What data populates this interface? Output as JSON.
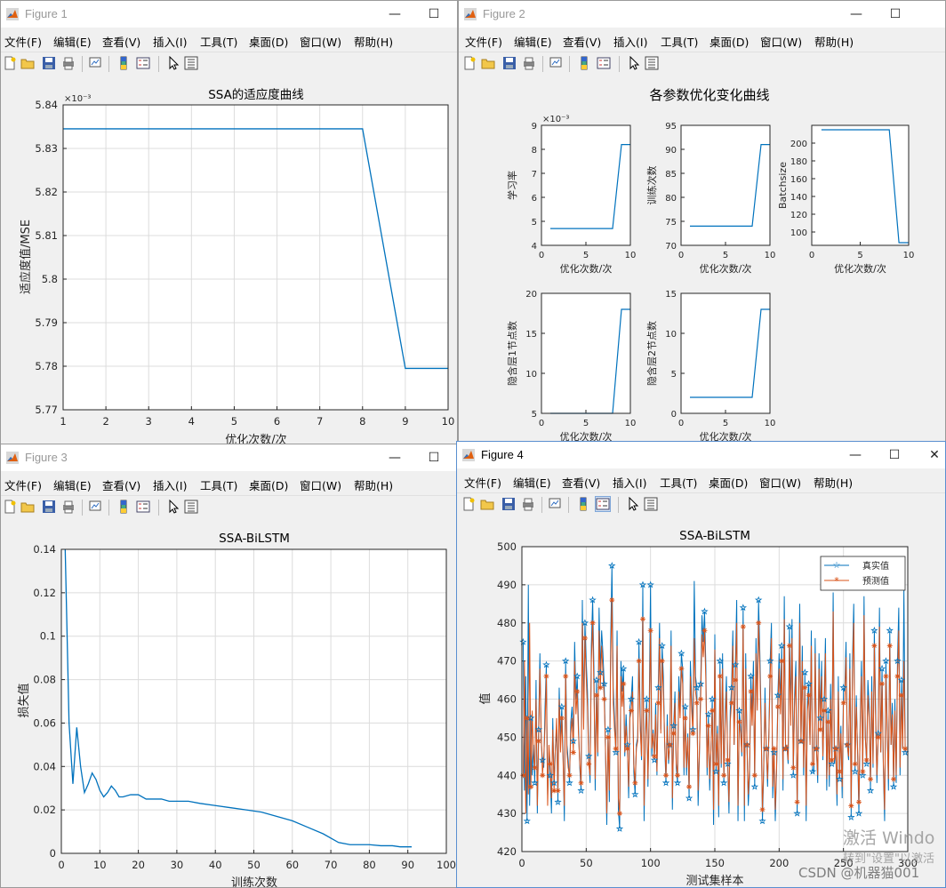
{
  "menu_items": [
    "文件(F)",
    "编辑(E)",
    "查看(V)",
    "插入(I)",
    "工具(T)",
    "桌面(D)",
    "窗口(W)",
    "帮助(H)"
  ],
  "window_controls": {
    "minimize": "—",
    "maximize": "☐",
    "close": "✕"
  },
  "toolbar_icons": [
    "new-figure-icon",
    "open-icon",
    "save-icon",
    "print-icon",
    "link-plot-icon",
    "insert-colorbar-icon",
    "insert-legend-icon",
    "edit-plot-icon",
    "property-inspector-icon"
  ],
  "colors": {
    "series_blue": "#0072BD",
    "series_orange": "#D95319",
    "grid": "#dcdcdc",
    "window_bg": "#f0f0f0"
  },
  "figures": [
    {
      "title": "Figure 1",
      "active": false
    },
    {
      "title": "Figure 2",
      "active": false
    },
    {
      "title": "Figure 3",
      "active": false
    },
    {
      "title": "Figure 4",
      "active": true
    }
  ],
  "watermark": {
    "line1": "激活 Windo",
    "line2": "转到\"设置\"以激活",
    "csdn": "CSDN @机器猫001"
  },
  "chart_data": [
    {
      "figure": "Figure 1",
      "type": "line",
      "title": "SSA的适应度曲线",
      "xlabel": "优化次数/次",
      "ylabel": "适应度值/MSE",
      "exponent_label": "×10⁻³",
      "x": [
        1,
        2,
        3,
        4,
        5,
        6,
        7,
        8,
        9,
        10
      ],
      "y": [
        5.8345,
        5.8345,
        5.8345,
        5.8345,
        5.8345,
        5.8345,
        5.8345,
        5.8345,
        5.7795,
        5.7795
      ],
      "xlim": [
        1,
        10
      ],
      "ylim": [
        5.77,
        5.84
      ],
      "xticks": [
        "1",
        "2",
        "3",
        "4",
        "5",
        "6",
        "7",
        "8",
        "9",
        "10"
      ],
      "yticks": [
        "5.77",
        "5.78",
        "5.79",
        "5.8",
        "5.81",
        "5.82",
        "5.83",
        "5.84"
      ],
      "grid": true
    },
    {
      "figure": "Figure 2",
      "type": "line",
      "suptitle": "各参数优化变化曲线",
      "subplots": [
        {
          "ylabel": "学习率",
          "xlabel": "优化次数/次",
          "exponent_label": "×10⁻³",
          "x": [
            1,
            8,
            9,
            10
          ],
          "y": [
            4.7,
            4.7,
            8.2,
            8.2
          ],
          "xlim": [
            0,
            10
          ],
          "ylim": [
            4,
            9
          ],
          "xticks": [
            "0",
            "5",
            "10"
          ],
          "yticks": [
            "4",
            "5",
            "6",
            "7",
            "8",
            "9"
          ]
        },
        {
          "ylabel": "训练次数",
          "xlabel": "优化次数/次",
          "x": [
            1,
            8,
            9,
            10
          ],
          "y": [
            74,
            74,
            91,
            91
          ],
          "xlim": [
            0,
            10
          ],
          "ylim": [
            70,
            95
          ],
          "xticks": [
            "0",
            "5",
            "10"
          ],
          "yticks": [
            "70",
            "75",
            "80",
            "85",
            "90",
            "95"
          ]
        },
        {
          "ylabel": "Batchsize",
          "xlabel": "优化次数/次",
          "x": [
            1,
            8,
            9,
            10
          ],
          "y": [
            215,
            215,
            88,
            88
          ],
          "xlim": [
            0,
            10
          ],
          "ylim": [
            85,
            220
          ],
          "xticks": [
            "0",
            "5",
            "10"
          ],
          "yticks": [
            "100",
            "120",
            "140",
            "160",
            "180",
            "200"
          ]
        },
        {
          "ylabel": "隐含层1节点数",
          "xlabel": "优化次数/次",
          "x": [
            1,
            8,
            9,
            10
          ],
          "y": [
            5,
            5,
            18,
            18
          ],
          "xlim": [
            0,
            10
          ],
          "ylim": [
            5,
            20
          ],
          "xticks": [
            "0",
            "5",
            "10"
          ],
          "yticks": [
            "5",
            "10",
            "15",
            "20"
          ]
        },
        {
          "ylabel": "隐含层2节点数",
          "xlabel": "优化次数/次",
          "x": [
            1,
            8,
            9,
            10
          ],
          "y": [
            2,
            2,
            13,
            13
          ],
          "xlim": [
            0,
            10
          ],
          "ylim": [
            0,
            15
          ],
          "xticks": [
            "0",
            "5",
            "10"
          ],
          "yticks": [
            "0",
            "5",
            "10",
            "15"
          ]
        }
      ]
    },
    {
      "figure": "Figure 3",
      "type": "line",
      "title": "SSA-BiLSTM",
      "xlabel": "训练次数",
      "ylabel": "损失值",
      "x": [
        1,
        2,
        3,
        4,
        5,
        6,
        7,
        8,
        9,
        10,
        11,
        12,
        13,
        14,
        15,
        16,
        18,
        20,
        22,
        24,
        26,
        28,
        30,
        33,
        36,
        40,
        44,
        48,
        52,
        56,
        60,
        64,
        68,
        72,
        75,
        78,
        80,
        83,
        86,
        88,
        91
      ],
      "y": [
        0.14,
        0.06,
        0.032,
        0.058,
        0.04,
        0.028,
        0.032,
        0.037,
        0.034,
        0.029,
        0.026,
        0.028,
        0.031,
        0.029,
        0.026,
        0.026,
        0.027,
        0.027,
        0.025,
        0.025,
        0.025,
        0.024,
        0.024,
        0.024,
        0.023,
        0.022,
        0.021,
        0.02,
        0.019,
        0.017,
        0.015,
        0.012,
        0.009,
        0.005,
        0.004,
        0.004,
        0.004,
        0.0035,
        0.0035,
        0.003,
        0.003
      ],
      "xlim": [
        0,
        100
      ],
      "ylim": [
        0,
        0.14
      ],
      "xticks": [
        "0",
        "10",
        "20",
        "30",
        "40",
        "50",
        "60",
        "70",
        "80",
        "90",
        "100"
      ],
      "yticks": [
        "0",
        "0.02",
        "0.04",
        "0.06",
        "0.08",
        "0.1",
        "0.12",
        "0.14"
      ],
      "grid": true
    },
    {
      "figure": "Figure 4",
      "type": "line",
      "title": "SSA-BiLSTM",
      "xlabel": "测试集样本",
      "ylabel": "值",
      "xlim": [
        0,
        300
      ],
      "ylim": [
        420,
        500
      ],
      "xticks": [
        "0",
        "50",
        "100",
        "150",
        "200",
        "250",
        "300"
      ],
      "yticks": [
        "420",
        "430",
        "440",
        "450",
        "460",
        "470",
        "480",
        "490",
        "500"
      ],
      "legend_position": "top-right",
      "grid": true,
      "series": [
        {
          "name": "真实值",
          "marker": "pentagram",
          "color": "#0072BD",
          "values": [
            475,
            436,
            466,
            428,
            490,
            432,
            455,
            440,
            448,
            438,
            465,
            430,
            452,
            472,
            449,
            444,
            442,
            458,
            469,
            435,
            446,
            440,
            430,
            455,
            438,
            447,
            452,
            433,
            463,
            449,
            458,
            446,
            428,
            470,
            448,
            444,
            438,
            454,
            458,
            449,
            475,
            460,
            466,
            453,
            442,
            436,
            486,
            455,
            480,
            470,
            462,
            445,
            438,
            474,
            486,
            468,
            436,
            465,
            445,
            484,
            467,
            478,
            472,
            464,
            446,
            427,
            452,
            433,
            475,
            495,
            463,
            455,
            446,
            478,
            431,
            426,
            470,
            462,
            468,
            445,
            456,
            448,
            434,
            458,
            460,
            466,
            441,
            435,
            448,
            450,
            475,
            455,
            444,
            490,
            428,
            451,
            460,
            437,
            458,
            490,
            445,
            452,
            444,
            459,
            440,
            463,
            480,
            452,
            474,
            466,
            448,
            438,
            456,
            443,
            448,
            478,
            431,
            453,
            462,
            442,
            438,
            466,
            458,
            472,
            468,
            440,
            458,
            440,
            451,
            434,
            470,
            460,
            452,
            491,
            466,
            463,
            432,
            445,
            464,
            482,
            475,
            483,
            469,
            440,
            456,
            436,
            447,
            460,
            427,
            477,
            441,
            453,
            429,
            470,
            442,
            472,
            438,
            456,
            466,
            443,
            430,
            457,
            463,
            478,
            448,
            469,
            486,
            428,
            457,
            453,
            445,
            484,
            428,
            472,
            448,
            432,
            440,
            466,
            456,
            470,
            437,
            476,
            460,
            486,
            472,
            455,
            428,
            441,
            463,
            447,
            437,
            451,
            470,
            480,
            434,
            446,
            428,
            441,
            461,
            472,
            459,
            474,
            436,
            487,
            447,
            448,
            443,
            479,
            456,
            481,
            440,
            461,
            470,
            430,
            457,
            485,
            449,
            474,
            440,
            467,
            428,
            460,
            464,
            448,
            478,
            441,
            441,
            476,
            447,
            438,
            472,
            455,
            470,
            444,
            460,
            476,
            436,
            457,
            437,
            464,
            443,
            488,
            443,
            447,
            432,
            466,
            439,
            453,
            434,
            463,
            462,
            475,
            448,
            444,
            472,
            429,
            470,
            485,
            441,
            461,
            446,
            430,
            454,
            470,
            440,
            487,
            450,
            443,
            465,
            458,
            436,
            466,
            442,
            478,
            458,
            438,
            451,
            484,
            446,
            468,
            442,
            428,
            470,
            453,
            436,
            478,
            448,
            459,
            437,
            460,
            438,
            470,
            484,
            440,
            465,
            447,
            489,
            446
          ]
        },
        {
          "name": "预测值",
          "marker": "asterisk",
          "color": "#D95319",
          "values": [
            440,
            470,
            430,
            455,
            435,
            480,
            437,
            457,
            445,
            442,
            460,
            432,
            449,
            468,
            451,
            440,
            445,
            453,
            466,
            432,
            448,
            443,
            434,
            452,
            436,
            447,
            455,
            436,
            460,
            446,
            455,
            444,
            432,
            466,
            446,
            442,
            440,
            451,
            455,
            446,
            470,
            456,
            462,
            451,
            443,
            438,
            480,
            452,
            476,
            466,
            458,
            443,
            440,
            470,
            480,
            463,
            439,
            461,
            446,
            478,
            463,
            474,
            467,
            460,
            447,
            430,
            450,
            436,
            470,
            486,
            459,
            452,
            447,
            474,
            434,
            430,
            466,
            458,
            464,
            446,
            453,
            447,
            437,
            455,
            457,
            462,
            443,
            438,
            447,
            449,
            470,
            452,
            445,
            481,
            432,
            450,
            457,
            439,
            455,
            478,
            447,
            451,
            445,
            456,
            441,
            459,
            476,
            451,
            470,
            462,
            449,
            440,
            453,
            444,
            448,
            474,
            434,
            451,
            459,
            443,
            440,
            462,
            455,
            468,
            464,
            442,
            455,
            442,
            450,
            437,
            466,
            457,
            451,
            476,
            462,
            459,
            436,
            446,
            460,
            477,
            471,
            478,
            465,
            442,
            453,
            439,
            447,
            457,
            431,
            473,
            443,
            451,
            432,
            466,
            443,
            468,
            440,
            453,
            462,
            444,
            433,
            454,
            459,
            474,
            448,
            465,
            480,
            432,
            454,
            451,
            446,
            479,
            432,
            468,
            448,
            435,
            442,
            462,
            453,
            466,
            440,
            472,
            457,
            480,
            468,
            452,
            431,
            443,
            459,
            447,
            439,
            450,
            466,
            476,
            437,
            447,
            431,
            442,
            458,
            468,
            456,
            470,
            439,
            481,
            447,
            448,
            444,
            474,
            453,
            476,
            442,
            458,
            466,
            433,
            454,
            480,
            449,
            470,
            442,
            463,
            432,
            457,
            461,
            448,
            474,
            443,
            443,
            472,
            447,
            440,
            468,
            452,
            466,
            445,
            457,
            472,
            439,
            454,
            440,
            460,
            444,
            483,
            444,
            447,
            435,
            462,
            441,
            451,
            437,
            459,
            459,
            471,
            448,
            445,
            468,
            432,
            466,
            480,
            443,
            458,
            447,
            433,
            452,
            466,
            441,
            482,
            450,
            444,
            461,
            455,
            439,
            462,
            443,
            474,
            455,
            440,
            450,
            479,
            446,
            464,
            443,
            431,
            466,
            451,
            439,
            474,
            448,
            456,
            439,
            457,
            440,
            466,
            478,
            442,
            461,
            447,
            470,
            447
          ]
        }
      ]
    }
  ]
}
